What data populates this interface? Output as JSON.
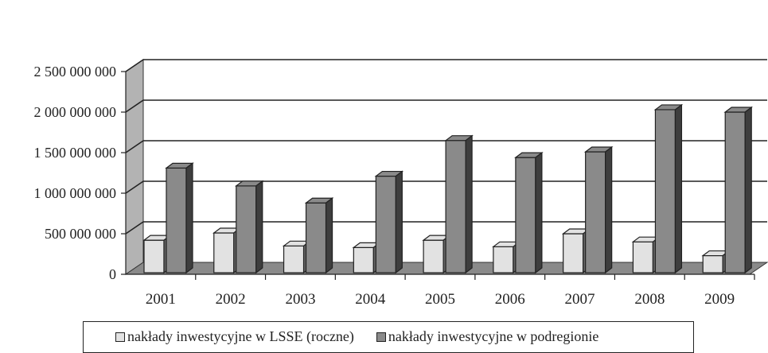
{
  "chart_data": {
    "type": "bar",
    "categories": [
      "2001",
      "2002",
      "2003",
      "2004",
      "2005",
      "2006",
      "2007",
      "2008",
      "2009"
    ],
    "series": [
      {
        "name": "nakłady inwestycyjne w LSSE (roczne)",
        "color": "#e2e2e2",
        "values": [
          420000000,
          510000000,
          350000000,
          330000000,
          420000000,
          340000000,
          500000000,
          400000000,
          230000000
        ]
      },
      {
        "name": "nakłady inwestycyjne w podregionie",
        "color": "#8a8a8a",
        "values": [
          1310000000,
          1090000000,
          880000000,
          1210000000,
          1650000000,
          1440000000,
          1510000000,
          2030000000,
          2000000000
        ]
      }
    ],
    "yticks": [
      "0",
      "500 000 000",
      "1 000 000 000",
      "1 500 000 000",
      "2 000 000 000",
      "2 500 000 000"
    ],
    "ylim": [
      0,
      2500000000
    ],
    "grid": true,
    "legend_position": "bottom",
    "style": "3d-clustered-column"
  }
}
